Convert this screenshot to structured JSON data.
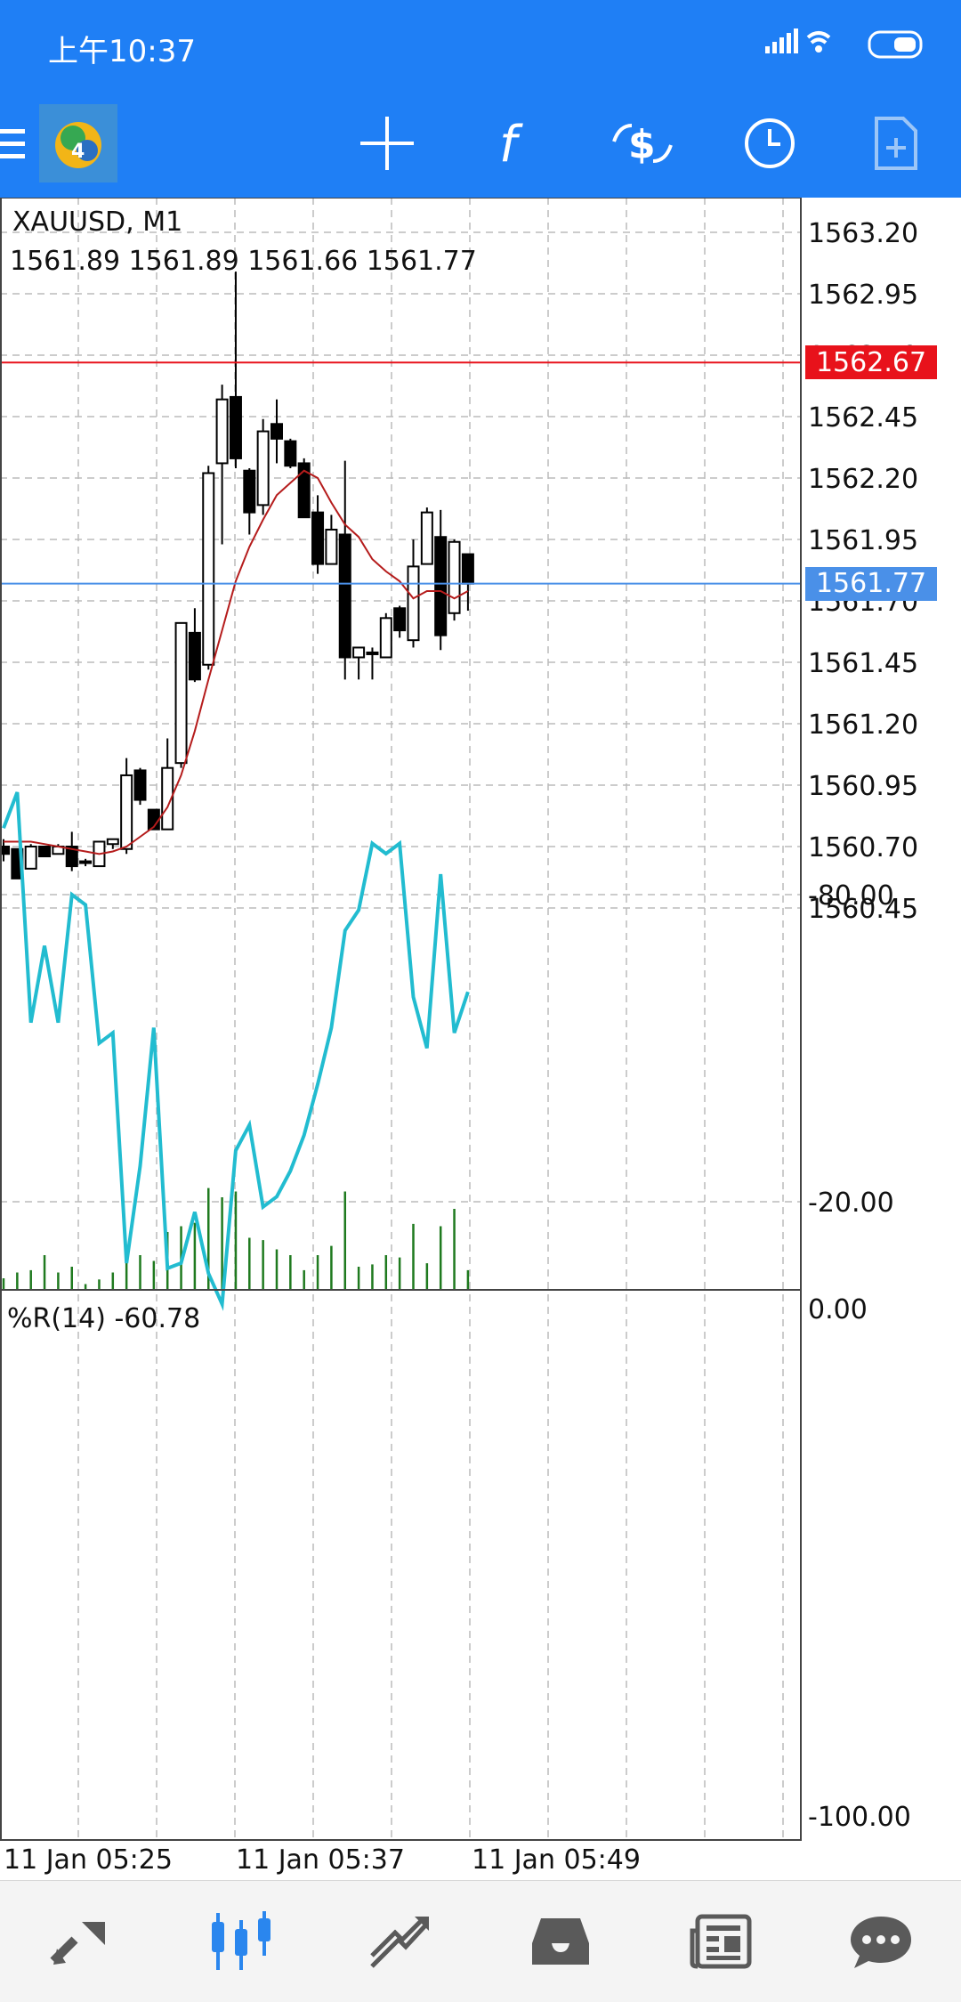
{
  "status_bar": {
    "time": "上午10:37"
  },
  "chart": {
    "symbol_timeframe": "XAUUSD, M1",
    "ohlc_line": "1561.89 1561.89 1561.66 1561.77",
    "price_ticks": [
      "1563.20",
      "1562.95",
      "1562.70",
      "1562.45",
      "1562.20",
      "1561.95",
      "1561.70",
      "1561.45",
      "1561.20",
      "1560.95",
      "1560.70",
      "1560.45"
    ],
    "ask_price_label": "1562.67",
    "bid_price_label": "1561.77",
    "ask_color": "#e8121b",
    "bid_color": "#4a90e8"
  },
  "indicator": {
    "label": "%R(14) -60.78",
    "ticks": [
      "0.00",
      "-20.00",
      "-80.00",
      "-100.00"
    ],
    "line_color": "#22bcd0"
  },
  "time_axis": {
    "labels": [
      "11 Jan 05:25",
      "11 Jan 05:37",
      "11 Jan 05:49"
    ]
  },
  "chart_data": {
    "type": "candlestick",
    "candles": [
      {
        "o": 1560.7,
        "h": 1560.73,
        "l": 1560.64,
        "c": 1560.67
      },
      {
        "o": 1560.69,
        "h": 1560.69,
        "l": 1560.57,
        "c": 1560.57
      },
      {
        "o": 1560.61,
        "h": 1560.71,
        "l": 1560.61,
        "c": 1560.7
      },
      {
        "o": 1560.7,
        "h": 1560.7,
        "l": 1560.66,
        "c": 1560.66
      },
      {
        "o": 1560.67,
        "h": 1560.71,
        "l": 1560.67,
        "c": 1560.7
      },
      {
        "o": 1560.7,
        "h": 1560.76,
        "l": 1560.6,
        "c": 1560.62
      },
      {
        "o": 1560.64,
        "h": 1560.65,
        "l": 1560.62,
        "c": 1560.64
      },
      {
        "o": 1560.62,
        "h": 1560.72,
        "l": 1560.62,
        "c": 1560.72
      },
      {
        "o": 1560.71,
        "h": 1560.73,
        "l": 1560.69,
        "c": 1560.73
      },
      {
        "o": 1560.69,
        "h": 1561.06,
        "l": 1560.67,
        "c": 1560.99
      },
      {
        "o": 1561.01,
        "h": 1561.02,
        "l": 1560.87,
        "c": 1560.89
      },
      {
        "o": 1560.85,
        "h": 1560.85,
        "l": 1560.77,
        "c": 1560.77
      },
      {
        "o": 1560.77,
        "h": 1561.14,
        "l": 1560.77,
        "c": 1561.02
      },
      {
        "o": 1561.04,
        "h": 1561.61,
        "l": 1561.02,
        "c": 1561.61
      },
      {
        "o": 1561.57,
        "h": 1561.67,
        "l": 1561.37,
        "c": 1561.38
      },
      {
        "o": 1561.44,
        "h": 1562.25,
        "l": 1561.42,
        "c": 1562.22
      },
      {
        "o": 1562.26,
        "h": 1562.58,
        "l": 1561.93,
        "c": 1562.52
      },
      {
        "o": 1562.53,
        "h": 1563.04,
        "l": 1562.24,
        "c": 1562.28
      },
      {
        "o": 1562.23,
        "h": 1562.24,
        "l": 1561.97,
        "c": 1562.06
      },
      {
        "o": 1562.09,
        "h": 1562.44,
        "l": 1562.05,
        "c": 1562.39
      },
      {
        "o": 1562.42,
        "h": 1562.52,
        "l": 1562.26,
        "c": 1562.36
      },
      {
        "o": 1562.35,
        "h": 1562.36,
        "l": 1562.24,
        "c": 1562.25
      },
      {
        "o": 1562.26,
        "h": 1562.28,
        "l": 1562.04,
        "c": 1562.04
      },
      {
        "o": 1562.06,
        "h": 1562.13,
        "l": 1561.81,
        "c": 1561.85
      },
      {
        "o": 1561.85,
        "h": 1562.05,
        "l": 1561.85,
        "c": 1561.99
      },
      {
        "o": 1561.97,
        "h": 1562.27,
        "l": 1561.38,
        "c": 1561.47
      },
      {
        "o": 1561.47,
        "h": 1561.51,
        "l": 1561.38,
        "c": 1561.51
      },
      {
        "o": 1561.49,
        "h": 1561.51,
        "l": 1561.38,
        "c": 1561.49
      },
      {
        "o": 1561.47,
        "h": 1561.65,
        "l": 1561.47,
        "c": 1561.63
      },
      {
        "o": 1561.67,
        "h": 1561.68,
        "l": 1561.55,
        "c": 1561.58
      },
      {
        "o": 1561.54,
        "h": 1561.95,
        "l": 1561.51,
        "c": 1561.84
      },
      {
        "o": 1561.85,
        "h": 1562.08,
        "l": 1561.85,
        "c": 1562.06
      },
      {
        "o": 1561.96,
        "h": 1562.07,
        "l": 1561.5,
        "c": 1561.56
      },
      {
        "o": 1561.65,
        "h": 1561.95,
        "l": 1561.62,
        "c": 1561.94
      },
      {
        "o": 1561.89,
        "h": 1561.89,
        "l": 1561.66,
        "c": 1561.77
      }
    ],
    "moving_average": [
      1560.72,
      1560.72,
      1560.72,
      1560.71,
      1560.7,
      1560.69,
      1560.68,
      1560.67,
      1560.68,
      1560.7,
      1560.74,
      1560.78,
      1560.86,
      1560.99,
      1561.17,
      1561.38,
      1561.58,
      1561.78,
      1561.92,
      1562.03,
      1562.13,
      1562.18,
      1562.23,
      1562.2,
      1562.1,
      1562.01,
      1561.96,
      1561.87,
      1561.82,
      1561.78,
      1561.71,
      1561.74,
      1561.74,
      1561.71,
      1561.74
    ],
    "volume": [
      0.1,
      0.15,
      0.17,
      0.3,
      0.15,
      0.2,
      0.05,
      0.09,
      0.15,
      0.3,
      0.3,
      0.25,
      0.5,
      0.55,
      0.58,
      0.88,
      0.8,
      0.85,
      0.45,
      0.43,
      0.35,
      0.3,
      0.17,
      0.3,
      0.38,
      0.85,
      0.2,
      0.22,
      0.3,
      0.28,
      0.57,
      0.23,
      0.55,
      0.7,
      0.17
    ],
    "williams_r": [
      -93,
      -100,
      -55,
      -70,
      -55,
      -80,
      -78,
      -51,
      -53,
      -8,
      -27,
      -54,
      -7,
      -8,
      -18,
      -6,
      0,
      -30,
      -35,
      -19,
      -21,
      -26,
      -33,
      -43,
      -54,
      -73,
      -77,
      -90,
      -88,
      -90,
      -60,
      -50,
      -84,
      -53,
      -61
    ],
    "price_range": [
      1560.35,
      1563.3
    ],
    "williams_range": [
      -100,
      0
    ]
  },
  "nav": {
    "toolbar_icons": [
      "menu-icon",
      "metatrader-logo",
      "crosshair-icon",
      "indicators-icon",
      "trade-icon",
      "timeframe-icon",
      "new-chart-icon"
    ],
    "bottom_tabs": [
      "quotes-tab",
      "chart-tab",
      "trade-tab",
      "history-tab",
      "news-tab",
      "messages-tab"
    ]
  }
}
